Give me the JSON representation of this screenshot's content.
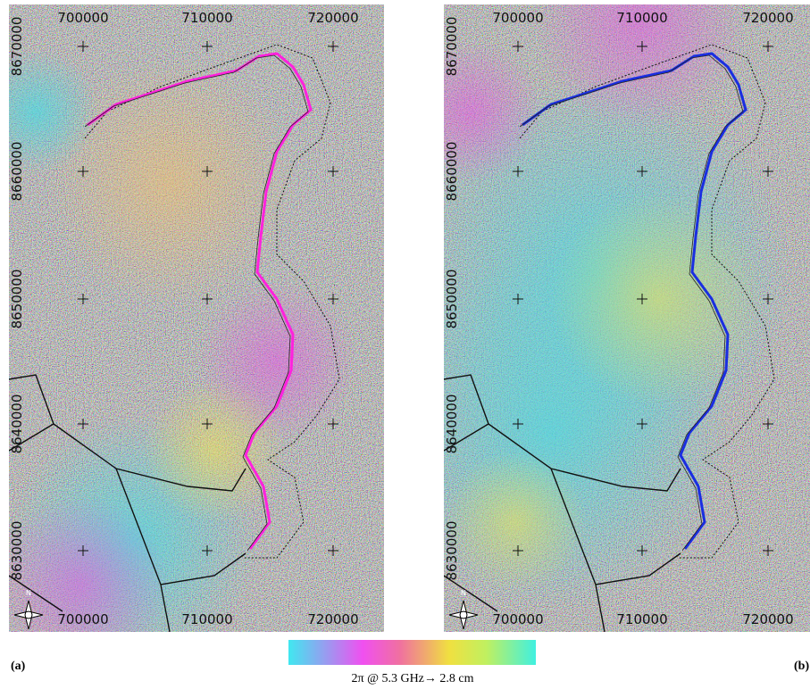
{
  "panels": [
    {
      "label": "(a)",
      "line_color": "#ff22dd",
      "x_labels_top": [
        "700000",
        "710000",
        "720000"
      ],
      "x_labels_bottom": [
        "700000",
        "710000",
        "720000"
      ],
      "y_labels": [
        "8670000",
        "8660000",
        "8650000",
        "8640000",
        "8630000"
      ],
      "north": "N"
    },
    {
      "label": "(b)",
      "line_color": "#1a2ee0",
      "x_labels_top": [
        "700000",
        "710000",
        "720000"
      ],
      "x_labels_bottom": [
        "700000",
        "710000",
        "720000"
      ],
      "y_labels": [
        "8670000",
        "8660000",
        "8650000",
        "8640000",
        "8630000"
      ],
      "north": "N"
    }
  ],
  "colorbar": {
    "caption": "2π @ 5.3 GHz→ 2.8 cm"
  }
}
